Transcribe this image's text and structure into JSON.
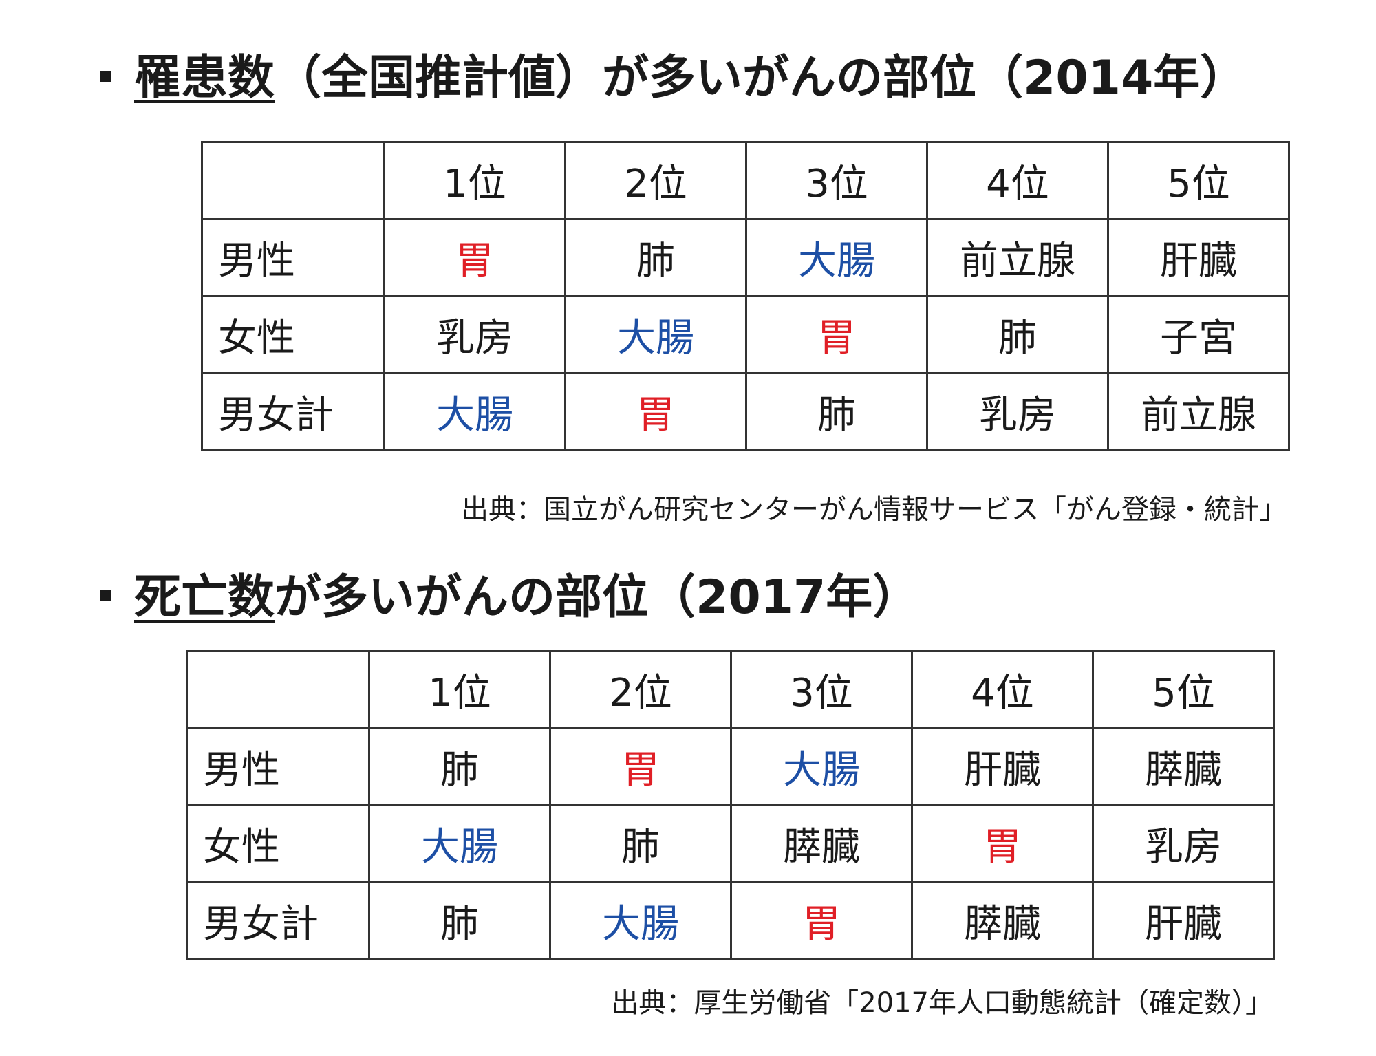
{
  "colors": {
    "stomach": "#e01f26",
    "colon": "#1d4fa5",
    "text": "#1a1a1a"
  },
  "section1": {
    "title_underlined": "罹患数",
    "title_rest": "（全国推計値）が多いがんの部位（2014年）",
    "headers": [
      "",
      "1位",
      "2位",
      "3位",
      "4位",
      "5位"
    ],
    "rows": [
      {
        "label": "男性",
        "cells": [
          "胃",
          "肺",
          "大腸",
          "前立腺",
          "肝臓"
        ]
      },
      {
        "label": "女性",
        "cells": [
          "乳房",
          "大腸",
          "胃",
          "肺",
          "子宮"
        ]
      },
      {
        "label": "男女計",
        "cells": [
          "大腸",
          "胃",
          "肺",
          "乳房",
          "前立腺"
        ]
      }
    ],
    "source": "出典：国立がん研究センターがん情報サービス「がん登録・統計」"
  },
  "section2": {
    "title_underlined": "死亡数",
    "title_rest": "が多いがんの部位（2017年）",
    "headers": [
      "",
      "1位",
      "2位",
      "3位",
      "4位",
      "5位"
    ],
    "rows": [
      {
        "label": "男性",
        "cells": [
          "肺",
          "胃",
          "大腸",
          "肝臓",
          "膵臓"
        ]
      },
      {
        "label": "女性",
        "cells": [
          "大腸",
          "肺",
          "膵臓",
          "胃",
          "乳房"
        ]
      },
      {
        "label": "男女計",
        "cells": [
          "肺",
          "大腸",
          "胃",
          "膵臓",
          "肝臓"
        ]
      }
    ],
    "source": "出典：厚生労働省「2017年人口動態統計（確定数）」"
  }
}
